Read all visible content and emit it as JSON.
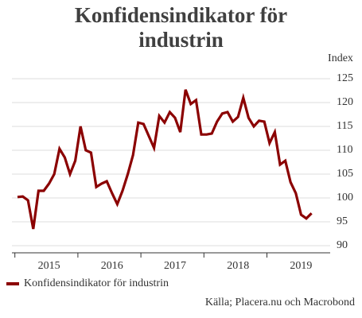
{
  "chart_data": {
    "type": "line",
    "title": "Konfidensindikator för industrin",
    "y_label": "Index",
    "source": "Källa; Placera.nu och Macrobond",
    "categories": [
      null,
      null,
      null,
      null,
      null,
      null,
      "2015",
      null,
      null,
      null,
      null,
      null,
      null,
      null,
      null,
      null,
      null,
      null,
      "2016",
      null,
      null,
      null,
      null,
      null,
      null,
      null,
      null,
      null,
      null,
      null,
      "2017",
      null,
      null,
      null,
      null,
      null,
      null,
      null,
      null,
      null,
      null,
      null,
      "2018",
      null,
      null,
      null,
      null,
      null,
      null,
      null,
      null,
      null,
      null,
      null,
      "2019",
      null,
      null
    ],
    "series": [
      {
        "name": "Konfidensindikator för industrin",
        "color": "#8b0000",
        "values": [
          100.2,
          100.3,
          99.5,
          93.5,
          101.5,
          101.5,
          103,
          105,
          110.3,
          108.5,
          105,
          107.8,
          115,
          110,
          109.5,
          102.3,
          103,
          103.5,
          101,
          98.7,
          101.5,
          105,
          109,
          115.8,
          115.5,
          113,
          110.5,
          117.2,
          115.8,
          118,
          116.8,
          113.8,
          122.7,
          119.7,
          120.5,
          113.3,
          113.3,
          113.5,
          116,
          117.7,
          118,
          116,
          117,
          121,
          116.8,
          115,
          116.2,
          116,
          111.5,
          113.8,
          107,
          107.8,
          103.3,
          101,
          96.5,
          95.7,
          96.8
        ]
      }
    ],
    "ylim": [
      88.5,
      127
    ],
    "yticks": [
      90,
      95,
      100,
      105,
      110,
      115,
      120,
      125
    ],
    "grid": true
  }
}
